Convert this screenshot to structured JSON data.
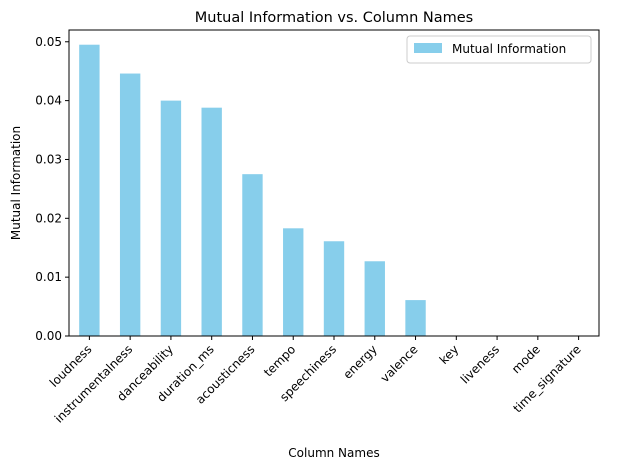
{
  "chart_data": {
    "type": "bar",
    "title": "Mutual Information vs. Column Names",
    "xlabel": "Column Names",
    "ylabel": "Mutual Information",
    "categories": [
      "loudness",
      "instrumentalness",
      "danceability",
      "duration_ms",
      "acousticness",
      "tempo",
      "speechiness",
      "energy",
      "valence",
      "key",
      "liveness",
      "mode",
      "time_signature"
    ],
    "series": [
      {
        "name": "Mutual Information",
        "values": [
          0.0495,
          0.0446,
          0.04,
          0.0388,
          0.0275,
          0.0183,
          0.0161,
          0.0127,
          0.0061,
          0,
          0,
          0,
          0
        ]
      }
    ],
    "ylim": [
      0,
      0.052
    ],
    "yticks": [
      0.0,
      0.01,
      0.02,
      0.03,
      0.04,
      0.05
    ],
    "ytick_labels": [
      "0.00",
      "0.01",
      "0.02",
      "0.03",
      "0.04",
      "0.05"
    ],
    "grid": false,
    "legend": "top-right",
    "bar_color": "#87CEEB"
  }
}
